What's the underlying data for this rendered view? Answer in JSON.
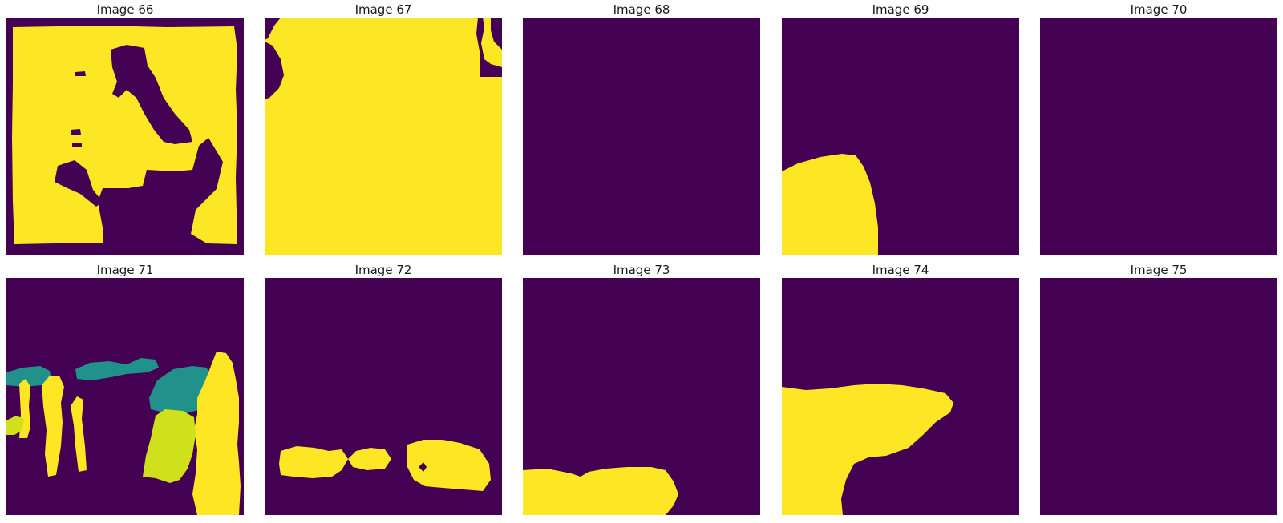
{
  "colors": {
    "background": "#440154",
    "class_1": "#fde725",
    "class_2": "#21918c",
    "class_3": "#d0e11c"
  },
  "panels": [
    {
      "title": "Image 66"
    },
    {
      "title": "Image 67"
    },
    {
      "title": "Image 68"
    },
    {
      "title": "Image 69"
    },
    {
      "title": "Image 70"
    },
    {
      "title": "Image 71"
    },
    {
      "title": "Image 72"
    },
    {
      "title": "Image 73"
    },
    {
      "title": "Image 74"
    },
    {
      "title": "Image 75"
    }
  ]
}
